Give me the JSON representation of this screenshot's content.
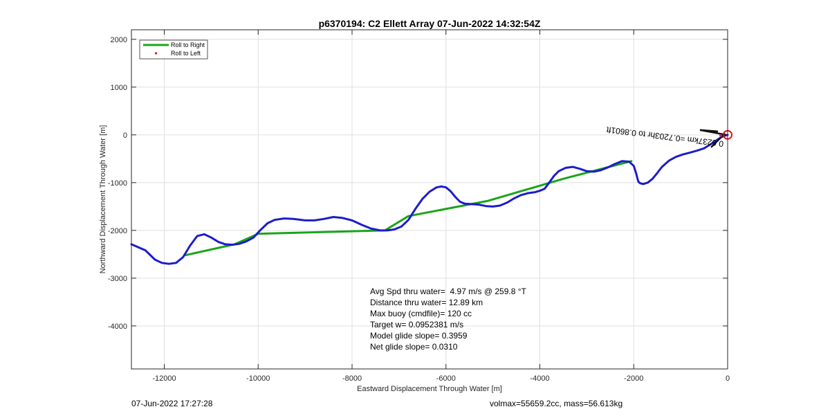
{
  "chart_data": {
    "type": "line",
    "title": "p6370194: C2 Ellett Array 07-Jun-2022 14:32:54Z",
    "xlabel": "Eastward Displacement Through Water [m]",
    "ylabel": "Northward Displacement Through Water [m]",
    "xlim": [
      -12700,
      0
    ],
    "ylim": [
      -4900,
      2200
    ],
    "xticks": [
      -12000,
      -10000,
      -8000,
      -6000,
      -4000,
      -2000,
      0
    ],
    "xtick_labels": [
      "-12000",
      "-10000",
      "-8000",
      "-6000",
      "-4000",
      "-2000",
      "0"
    ],
    "yticks": [
      2000,
      1000,
      0,
      -1000,
      -2000,
      -3000,
      -4000
    ],
    "ytick_labels": [
      "2000",
      "1000",
      "0",
      "-1000",
      "-2000",
      "-3000",
      "-4000"
    ],
    "grid": true,
    "legend_position": "top-left",
    "legend": [
      {
        "label": "Roll to Right",
        "style": "line",
        "color": "#1aa41a"
      },
      {
        "label": "Roll to Left",
        "style": "dot",
        "color": "#e01010"
      }
    ],
    "series": [
      {
        "name": "Roll to Right",
        "color": "#1aa41a",
        "x": [
          -11550,
          -10500,
          -10000,
          -7300,
          -6800,
          -5100,
          -3500,
          -2050
        ],
        "y": [
          -2520,
          -2290,
          -2070,
          -2000,
          -1700,
          -1380,
          -920,
          -550
        ]
      },
      {
        "color": "#1c1ccc",
        "x": [
          -12700,
          -12400,
          -12200,
          -12050,
          -11900,
          -11750,
          -11600,
          -11450,
          -11300,
          -11150,
          -11000,
          -10850,
          -10700,
          -10550,
          -10400,
          -10250,
          -10100,
          -9950,
          -9800,
          -9650,
          -9450,
          -9250,
          -9000,
          -8800,
          -8600,
          -8400,
          -8200,
          -8000,
          -7800,
          -7600,
          -7400,
          -7250,
          -7100,
          -6950,
          -6800,
          -6650,
          -6500,
          -6350,
          -6200,
          -6100,
          -6000,
          -5900,
          -5800,
          -5700,
          -5600,
          -5450,
          -5300,
          -5150,
          -5000,
          -4850,
          -4700,
          -4550,
          -4400,
          -4250,
          -4100,
          -4000,
          -3900,
          -3800,
          -3700,
          -3600,
          -3450,
          -3300,
          -3150,
          -3000,
          -2850,
          -2700,
          -2550,
          -2400,
          -2250,
          -2100,
          -2000,
          -1950,
          -1920,
          -1900,
          -1870,
          -1800,
          -1700,
          -1600,
          -1500,
          -1400,
          -1250,
          -1100,
          -950,
          -800,
          -650,
          -500,
          -350,
          -200,
          -100,
          0
        ],
        "y": [
          -2290,
          -2420,
          -2610,
          -2680,
          -2700,
          -2680,
          -2560,
          -2320,
          -2120,
          -2080,
          -2150,
          -2240,
          -2290,
          -2300,
          -2280,
          -2230,
          -2150,
          -1990,
          -1850,
          -1780,
          -1750,
          -1760,
          -1790,
          -1790,
          -1760,
          -1720,
          -1740,
          -1790,
          -1880,
          -1960,
          -2000,
          -2000,
          -1980,
          -1920,
          -1780,
          -1550,
          -1340,
          -1190,
          -1100,
          -1080,
          -1100,
          -1180,
          -1300,
          -1400,
          -1440,
          -1450,
          -1460,
          -1490,
          -1500,
          -1480,
          -1420,
          -1330,
          -1260,
          -1220,
          -1200,
          -1170,
          -1130,
          -1000,
          -860,
          -760,
          -690,
          -670,
          -710,
          -760,
          -770,
          -740,
          -680,
          -610,
          -550,
          -560,
          -650,
          -800,
          -920,
          -980,
          -1010,
          -1030,
          -1000,
          -920,
          -800,
          -670,
          -540,
          -460,
          -410,
          -370,
          -330,
          -280,
          -190,
          -90,
          -30,
          0
        ]
      }
    ],
    "annotations": {
      "arrow_label": "0.6237km =0.7203hr to 0.8601ft",
      "stats": [
        "Avg Spd thru water=  4.97 m/s @ 259.8 °T",
        "Distance thru water= 12.89 km",
        "Max buoy (cmdfile)= 120 cc",
        "Target w= 0.0952381 m/s",
        "Model glide slope= 0.3959",
        "Net glide slope= 0.0310"
      ]
    }
  },
  "footer": {
    "timestamp": "07-Jun-2022 17:27:28",
    "mass_info": "volmax=55659.2cc, mass=56.613kg"
  }
}
